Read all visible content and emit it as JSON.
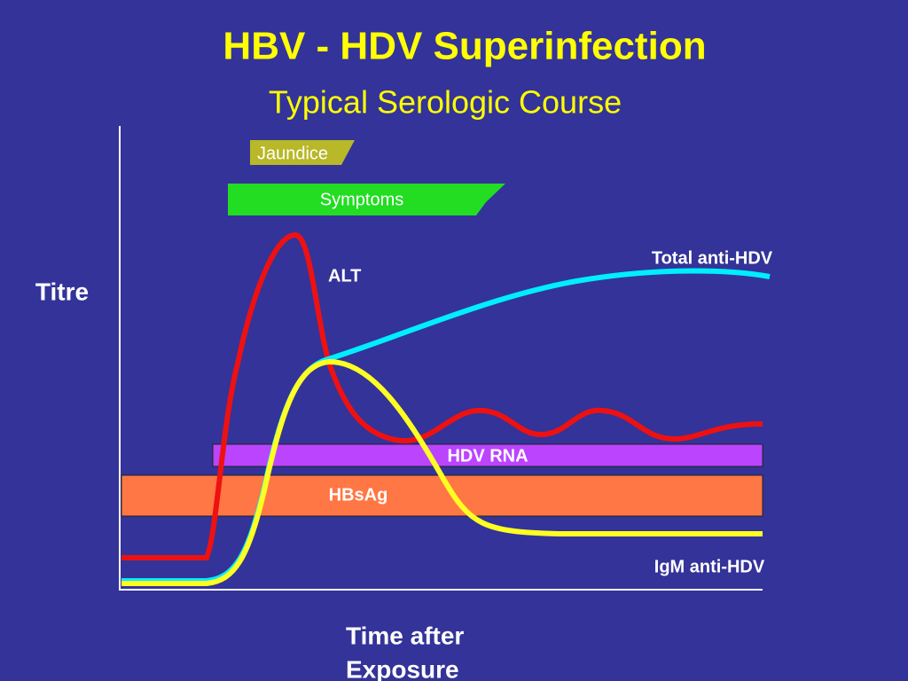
{
  "header": {
    "title": "HBV - HDV Superinfection",
    "subtitle": "Typical Serologic Course"
  },
  "axes": {
    "y_label": "Titre",
    "x_label_lines": [
      "Time after",
      "Exposure"
    ]
  },
  "bands": {
    "jaundice": "Jaundice",
    "symptoms": "Symptoms",
    "hdv_rna": "HDV RNA",
    "hbsag": "HBsAg"
  },
  "curves": {
    "alt": "ALT",
    "total_anti_hdv": "Total anti-HDV",
    "igm_anti_hdv": "IgM anti-HDV"
  }
}
